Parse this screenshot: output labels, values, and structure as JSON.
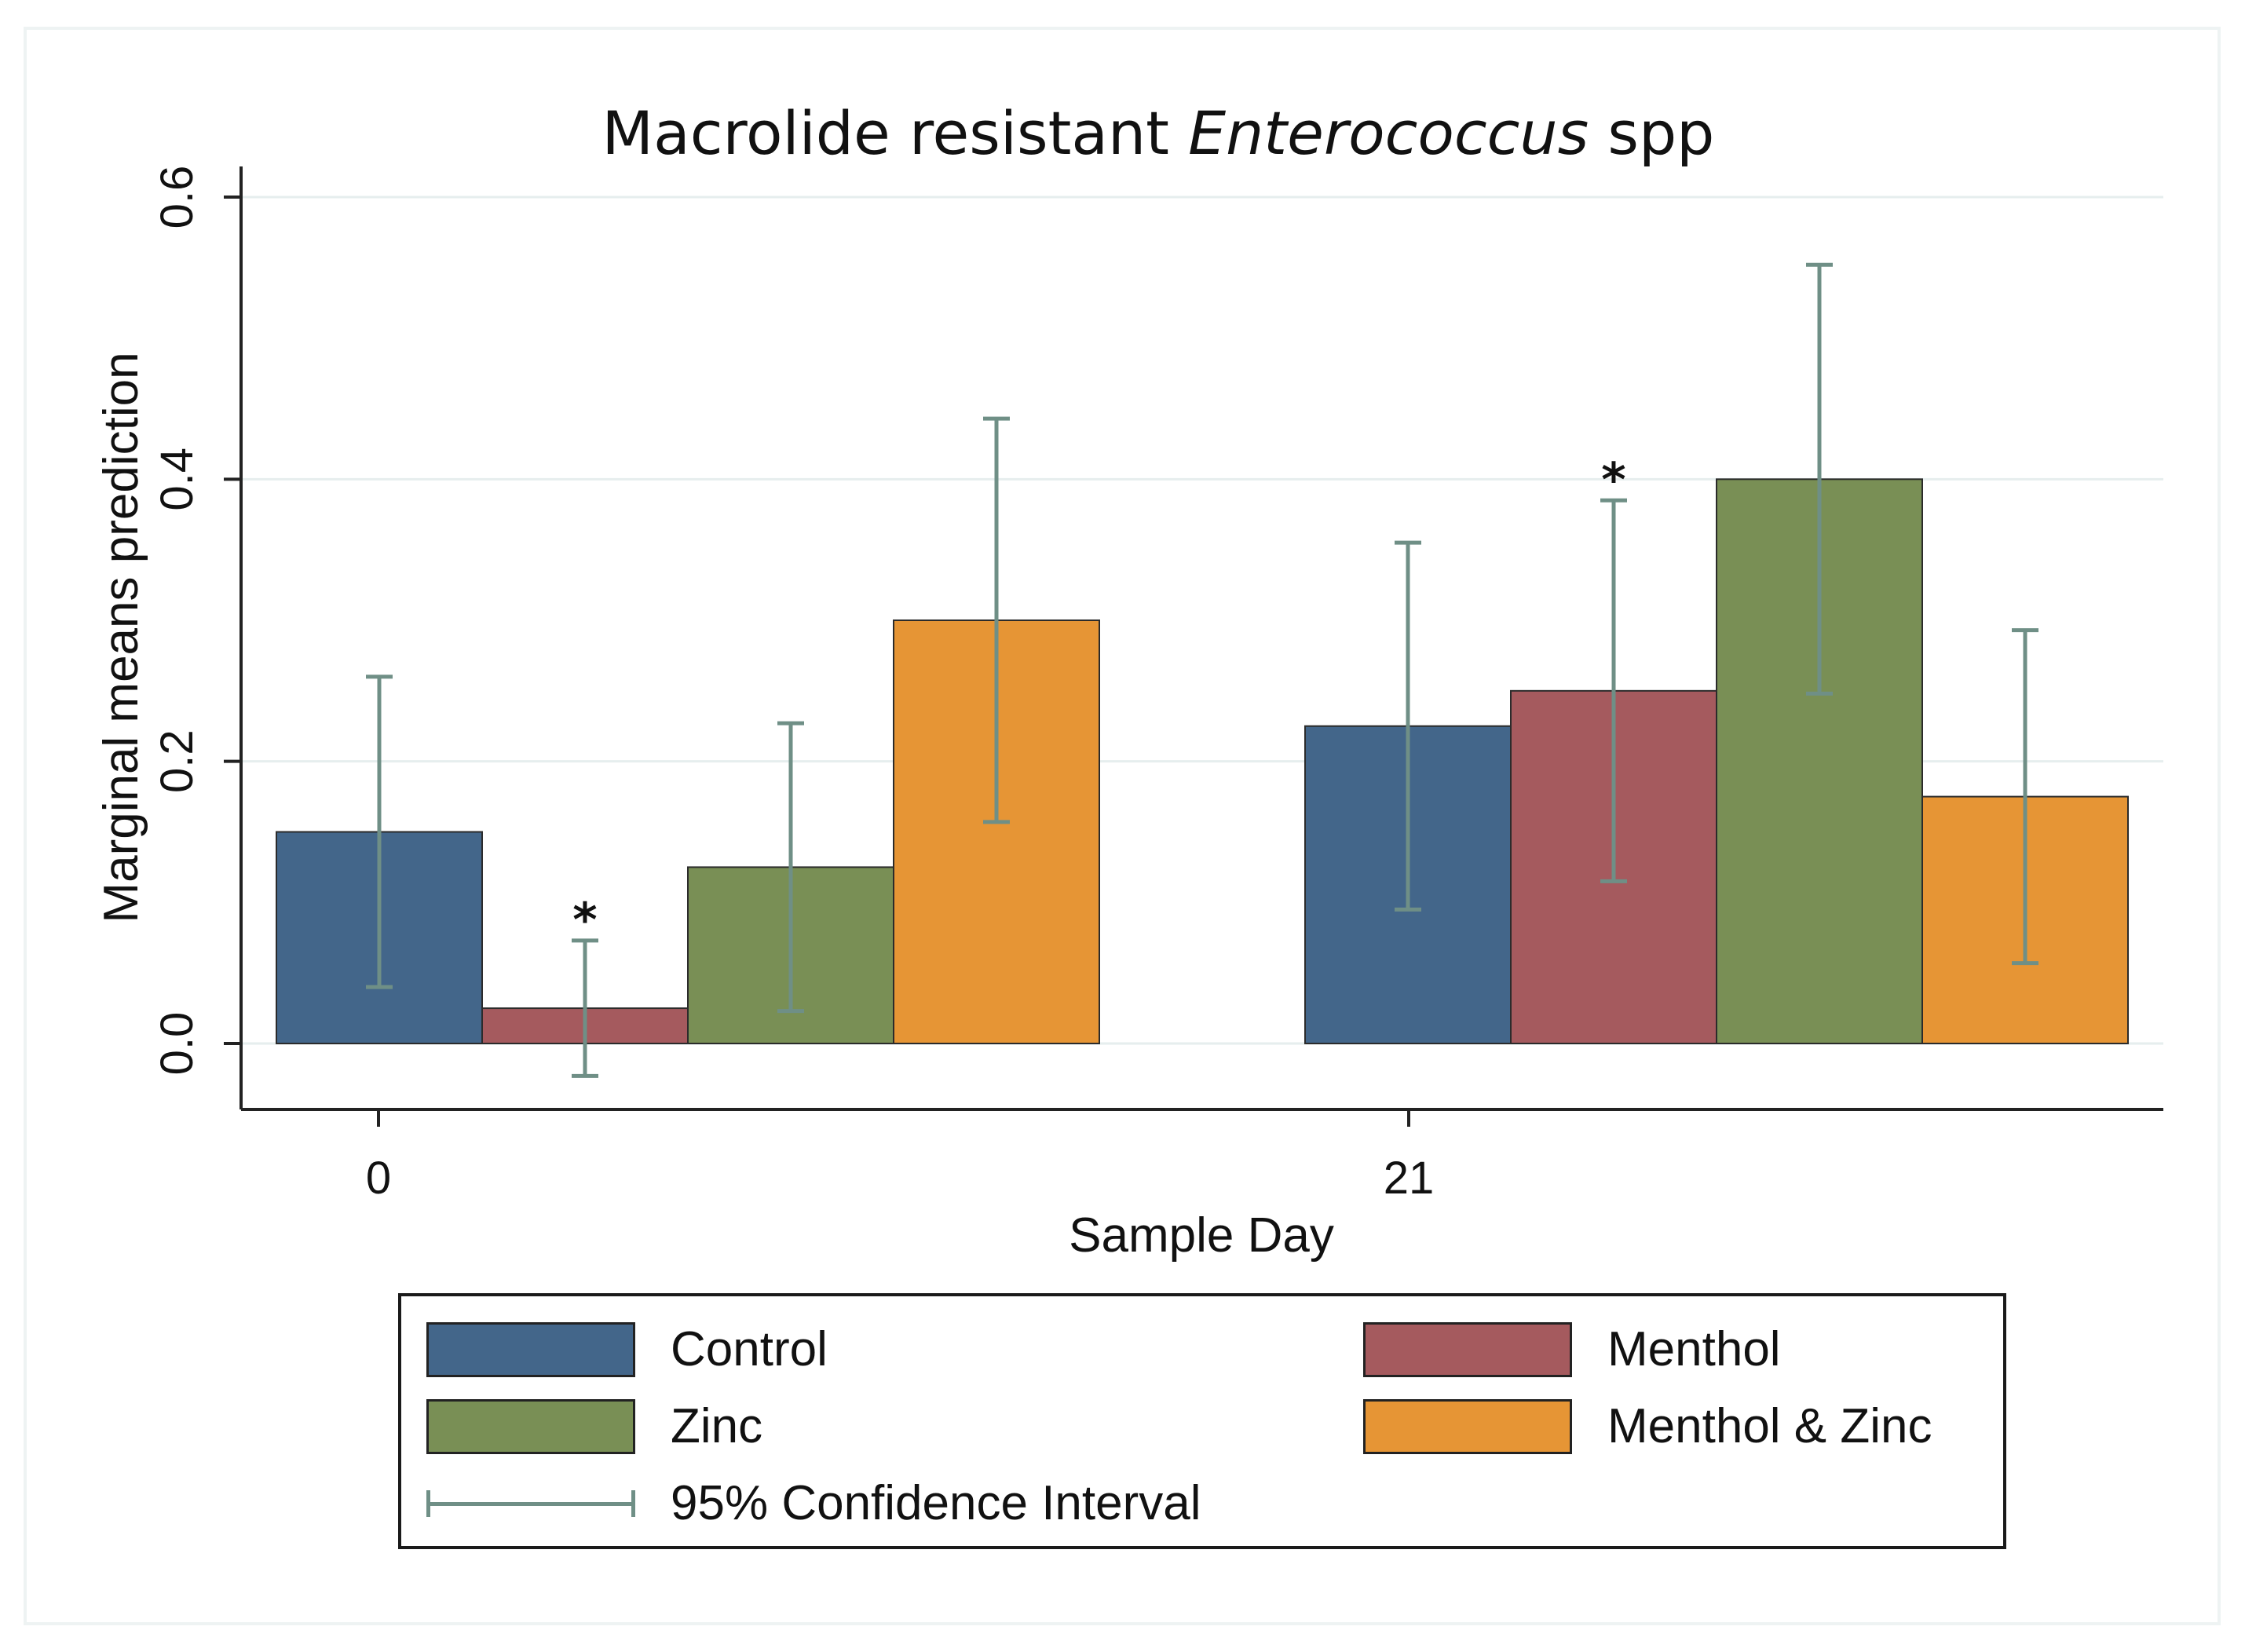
{
  "chart_data": {
    "type": "bar",
    "title": {
      "prefix": "Macrolide resistant ",
      "italic": "Enterococcus",
      "suffix": " spp"
    },
    "xlabel": "Sample Day",
    "ylabel": "Marginal means prediction",
    "ylim": [
      -0.047,
      0.62
    ],
    "yticks": [
      "0.0",
      "0.2",
      "0.4",
      "0.6"
    ],
    "categories": [
      "0",
      "21"
    ],
    "series": [
      {
        "name": "Control",
        "color": "#43668a",
        "values": [
          0.15,
          0.225
        ],
        "ci_low": [
          0.04,
          0.095
        ],
        "ci_high": [
          0.26,
          0.355
        ],
        "star": [
          false,
          false
        ]
      },
      {
        "name": "Menthol",
        "color": "#a55a5e",
        "values": [
          0.025,
          0.25
        ],
        "ci_low": [
          -0.023,
          0.115
        ],
        "ci_high": [
          0.073,
          0.385
        ],
        "star": [
          true,
          true
        ]
      },
      {
        "name": "Zinc",
        "color": "#798f55",
        "values": [
          0.125,
          0.4
        ],
        "ci_low": [
          0.023,
          0.248
        ],
        "ci_high": [
          0.227,
          0.552
        ],
        "star": [
          false,
          false
        ]
      },
      {
        "name": "Menthol & Zinc",
        "color": "#e69535",
        "values": [
          0.3,
          0.175
        ],
        "ci_low": [
          0.157,
          0.057
        ],
        "ci_high": [
          0.443,
          0.293
        ],
        "star": [
          false,
          false
        ]
      }
    ],
    "star_symbol": "*",
    "ci_color": "#6f8f86",
    "grid": true,
    "legend": {
      "position": "bottom",
      "ci_label": "95% Confidence Interval"
    }
  }
}
